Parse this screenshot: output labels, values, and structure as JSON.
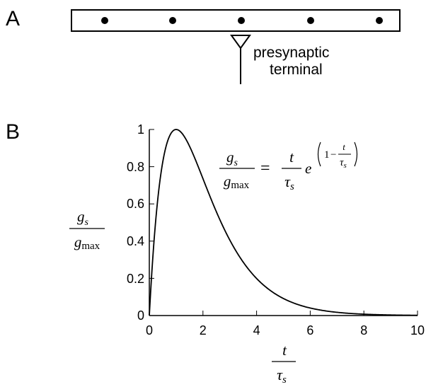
{
  "panels": {
    "a": {
      "label": "A",
      "annotation_line1": "presynaptic",
      "annotation_line2": "terminal"
    },
    "b": {
      "label": "B"
    }
  },
  "equation": {
    "lhs_num": "g",
    "lhs_num_sub": "s",
    "lhs_den": "g",
    "lhs_den_sub": "max",
    "equals": "=",
    "rhs_num": "t",
    "rhs_den": "τ",
    "rhs_den_sub": "s",
    "exp_base": "e",
    "exp_one": "1",
    "exp_minus": "−",
    "exp_num": "t",
    "exp_den": "τ",
    "exp_den_sub": "s"
  },
  "axes": {
    "ylabel_num": "g",
    "ylabel_num_sub": "s",
    "ylabel_den": "g",
    "ylabel_den_sub": "max",
    "xlabel_num": "t",
    "xlabel_den": "τ",
    "xlabel_den_sub": "s"
  },
  "chart_data": {
    "type": "line",
    "series": [
      {
        "function": "x * exp(1 - x)",
        "x": [
          0,
          0.25,
          0.5,
          0.75,
          1,
          1.5,
          2,
          2.5,
          3,
          4,
          5,
          6,
          7,
          8,
          9,
          10
        ],
        "y": [
          0,
          0.53,
          0.82,
          0.96,
          1.0,
          0.91,
          0.74,
          0.56,
          0.41,
          0.2,
          0.09,
          0.04,
          0.017,
          0.007,
          0.003,
          0.001
        ]
      }
    ],
    "xlim": [
      0,
      10
    ],
    "ylim": [
      0,
      1
    ],
    "xticks": [
      "0",
      "2",
      "4",
      "6",
      "8",
      "10"
    ],
    "yticks": [
      "0",
      "0.2",
      "0.4",
      "0.6",
      "0.8",
      "1"
    ],
    "grid": false
  }
}
